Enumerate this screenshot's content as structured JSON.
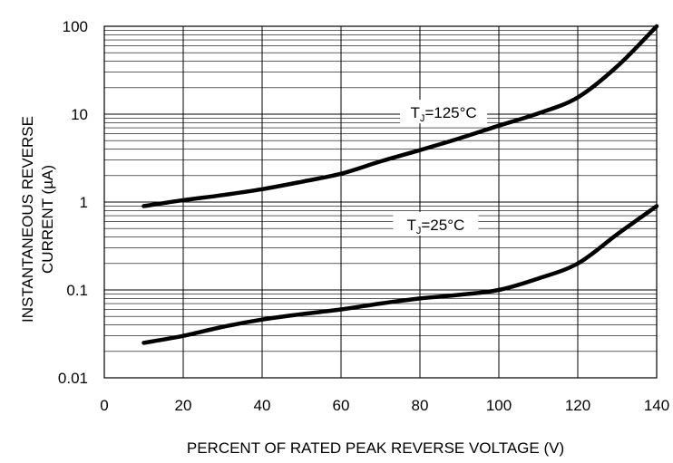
{
  "chart_data": {
    "type": "line",
    "xlabel": "PERCENT OF RATED PEAK REVERSE VOLTAGE (V)",
    "ylabel_lines": [
      "INSTANTANEOUS REVERSE",
      "CURRENT (µA)"
    ],
    "xlim": [
      0,
      140
    ],
    "ylim": [
      0.01,
      100
    ],
    "yscale": "log",
    "grid": true,
    "x_ticks": [
      "0",
      "20",
      "40",
      "60",
      "80",
      "100",
      "120",
      "140"
    ],
    "y_ticks": [
      "0.01",
      "0.1",
      "1",
      "10",
      "100"
    ],
    "series": [
      {
        "label": {
          "prefix": "T",
          "sub": "J",
          "suffix": "=125°C"
        },
        "x": [
          10,
          20,
          30,
          40,
          50,
          60,
          70,
          80,
          90,
          100,
          110,
          120,
          130,
          140
        ],
        "y": [
          0.9,
          1.05,
          1.2,
          1.4,
          1.7,
          2.1,
          2.9,
          3.9,
          5.3,
          7.4,
          10.2,
          15.5,
          35,
          100
        ]
      },
      {
        "label": {
          "prefix": "T",
          "sub": "J",
          "suffix": "=25°C"
        },
        "x": [
          10,
          20,
          30,
          40,
          50,
          60,
          70,
          80,
          90,
          100,
          110,
          120,
          130,
          140
        ],
        "y": [
          0.025,
          0.03,
          0.038,
          0.046,
          0.053,
          0.06,
          0.07,
          0.08,
          0.088,
          0.1,
          0.135,
          0.2,
          0.43,
          0.9
        ]
      }
    ]
  }
}
